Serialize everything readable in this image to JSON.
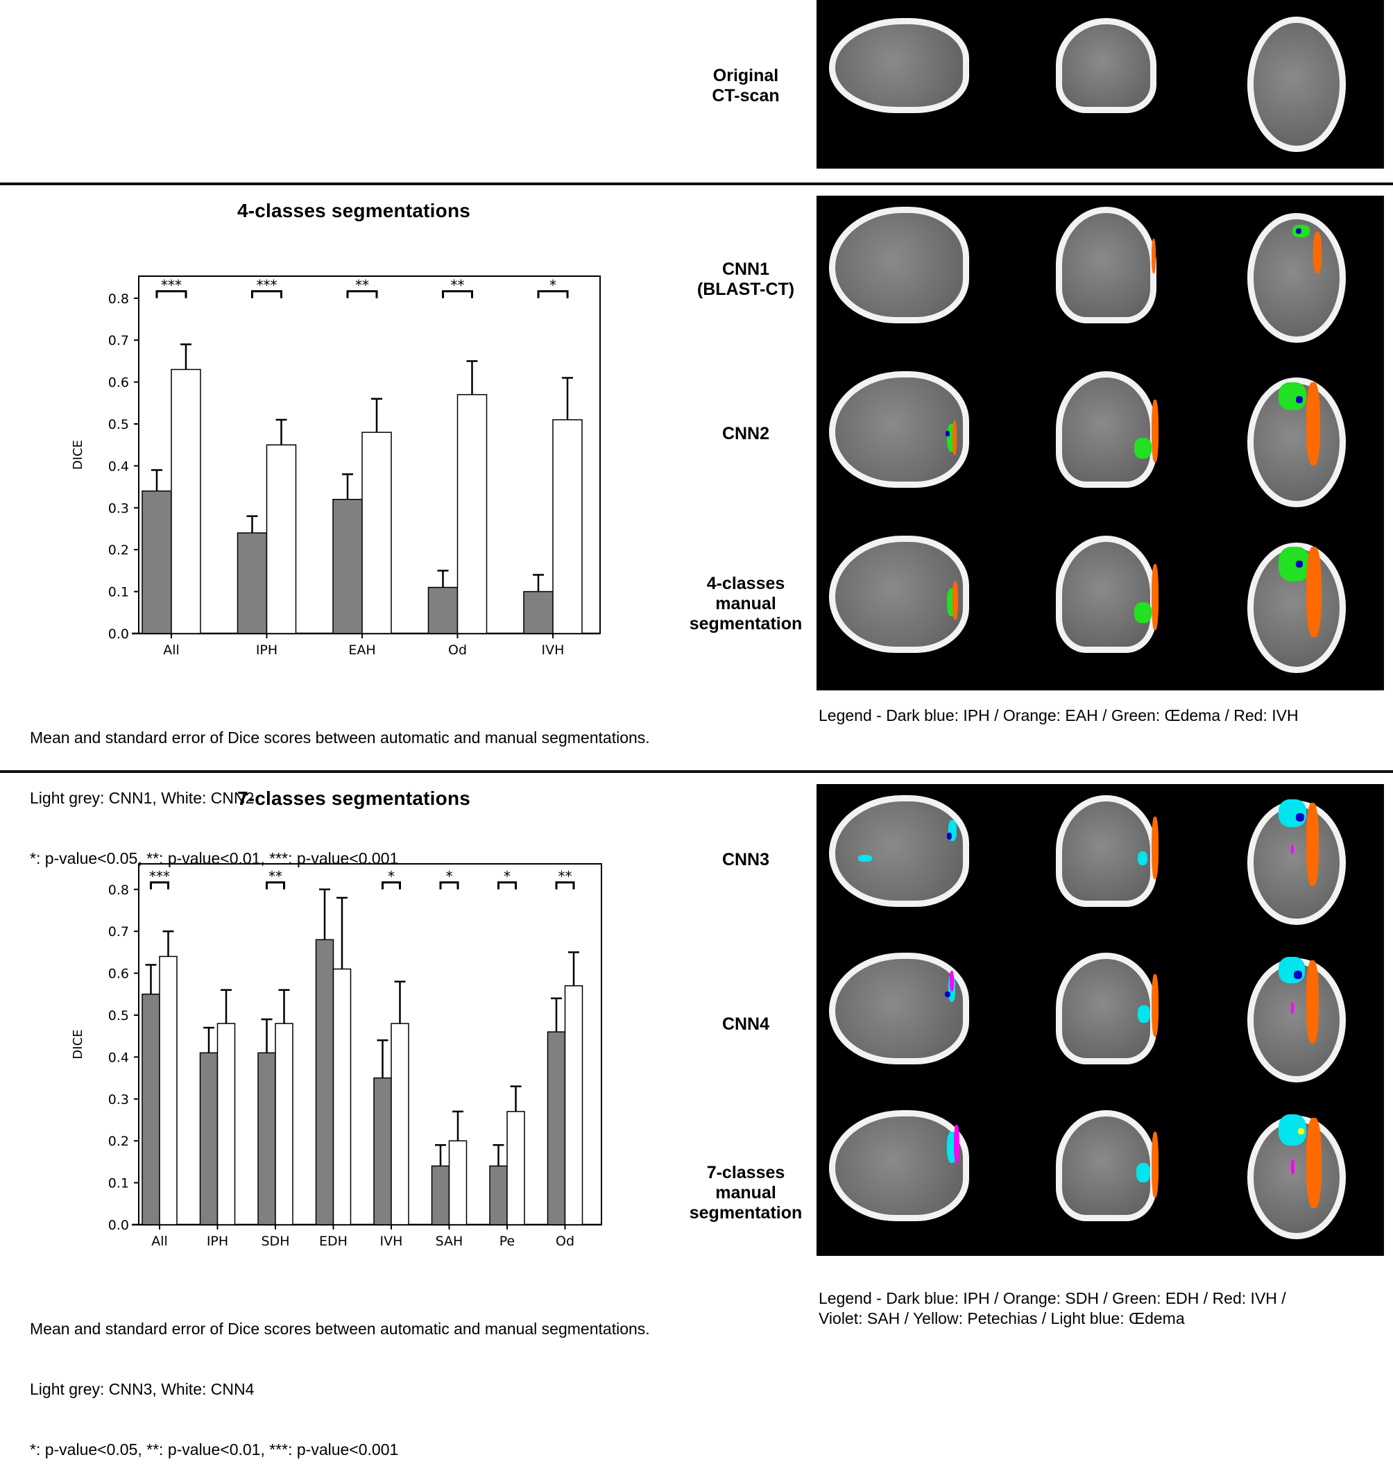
{
  "top_section": {
    "row_label": "Original\nCT-scan",
    "row_label_lines": [
      "Original",
      "CT-scan"
    ]
  },
  "section_4class": {
    "title": "4-classes segmentations",
    "row_labels": [
      {
        "lines": [
          "CNN1",
          "(BLAST-CT)"
        ]
      },
      {
        "lines": [
          "CNN2"
        ]
      },
      {
        "lines": [
          "4-classes",
          "manual",
          "segmentation"
        ]
      }
    ],
    "caption_lines": [
      "Mean and standard error of Dice scores between automatic and manual segmentations.",
      "Light grey: CNN1, White: CNN2",
      "*: p-value<0.05, **: p-value<0.01, ***: p-value<0.001"
    ],
    "legend": "Legend - Dark blue: IPH / Orange: EAH / Green: Œdema / Red: IVH"
  },
  "section_7class": {
    "title": "7-classes segmentations",
    "row_labels": [
      {
        "lines": [
          "CNN3"
        ]
      },
      {
        "lines": [
          "CNN4"
        ]
      },
      {
        "lines": [
          "7-classes",
          "manual",
          "segmentation"
        ]
      }
    ],
    "caption_lines": [
      "Mean and standard error of Dice scores between automatic and manual segmentations.",
      "Light grey: CNN3, White: CNN4",
      "*: p-value<0.05, **: p-value<0.01, ***: p-value<0.001"
    ],
    "legend_lines": [
      "Legend - Dark blue: IPH / Orange: SDH / Green: EDH / Red: IVH /",
      "Violet: SAH / Yellow: Petechias / Light blue: Œdema"
    ]
  },
  "colors": {
    "bar_grey": "#808080",
    "bar_white": "#ffffff",
    "seg_dark_blue": "#0000c8",
    "seg_orange": "#ff6a00",
    "seg_green": "#22e022",
    "seg_red": "#e00000",
    "seg_violet": "#ff00ff",
    "seg_yellow": "#ffff00",
    "seg_light_blue": "#00e5ee"
  },
  "chart_data": [
    {
      "type": "bar",
      "title": "4-classes segmentations",
      "xlabel": "",
      "ylabel": "DICE",
      "ylim": [
        0,
        0.85
      ],
      "yticks": [
        "0.0",
        "0.1",
        "0.2",
        "0.3",
        "0.4",
        "0.5",
        "0.6",
        "0.7",
        "0.8"
      ],
      "grid": false,
      "legend": "none (described in caption)",
      "categories": [
        "All",
        "IPH",
        "EAH",
        "Od",
        "IVH"
      ],
      "series": [
        {
          "name": "CNN1",
          "color": "grey",
          "values": [
            0.34,
            0.24,
            0.32,
            0.11,
            0.1
          ],
          "stderr": [
            0.05,
            0.04,
            0.06,
            0.04,
            0.04
          ]
        },
        {
          "name": "CNN2",
          "color": "white",
          "values": [
            0.63,
            0.45,
            0.48,
            0.57,
            0.51
          ],
          "stderr": [
            0.06,
            0.06,
            0.08,
            0.08,
            0.1
          ]
        }
      ],
      "significance": [
        "***",
        "***",
        "**",
        "**",
        "*"
      ]
    },
    {
      "type": "bar",
      "title": "7-classes segmentations",
      "xlabel": "",
      "ylabel": "DICE",
      "ylim": [
        0,
        0.85
      ],
      "yticks": [
        "0.0",
        "0.1",
        "0.2",
        "0.3",
        "0.4",
        "0.5",
        "0.6",
        "0.7",
        "0.8"
      ],
      "grid": false,
      "legend": "none (described in caption)",
      "categories": [
        "All",
        "IPH",
        "SDH",
        "EDH",
        "IVH",
        "SAH",
        "Pe",
        "Od"
      ],
      "series": [
        {
          "name": "CNN3",
          "color": "grey",
          "values": [
            0.55,
            0.41,
            0.41,
            0.68,
            0.35,
            0.14,
            0.14,
            0.46
          ],
          "stderr": [
            0.07,
            0.06,
            0.08,
            0.12,
            0.09,
            0.05,
            0.05,
            0.08
          ]
        },
        {
          "name": "CNN4",
          "color": "white",
          "values": [
            0.64,
            0.48,
            0.48,
            0.61,
            0.48,
            0.2,
            0.27,
            0.57
          ],
          "stderr": [
            0.06,
            0.08,
            0.08,
            0.17,
            0.1,
            0.07,
            0.06,
            0.08
          ]
        }
      ],
      "significance": [
        "***",
        "",
        "**",
        "",
        "*",
        "*",
        "*",
        "**"
      ]
    }
  ]
}
